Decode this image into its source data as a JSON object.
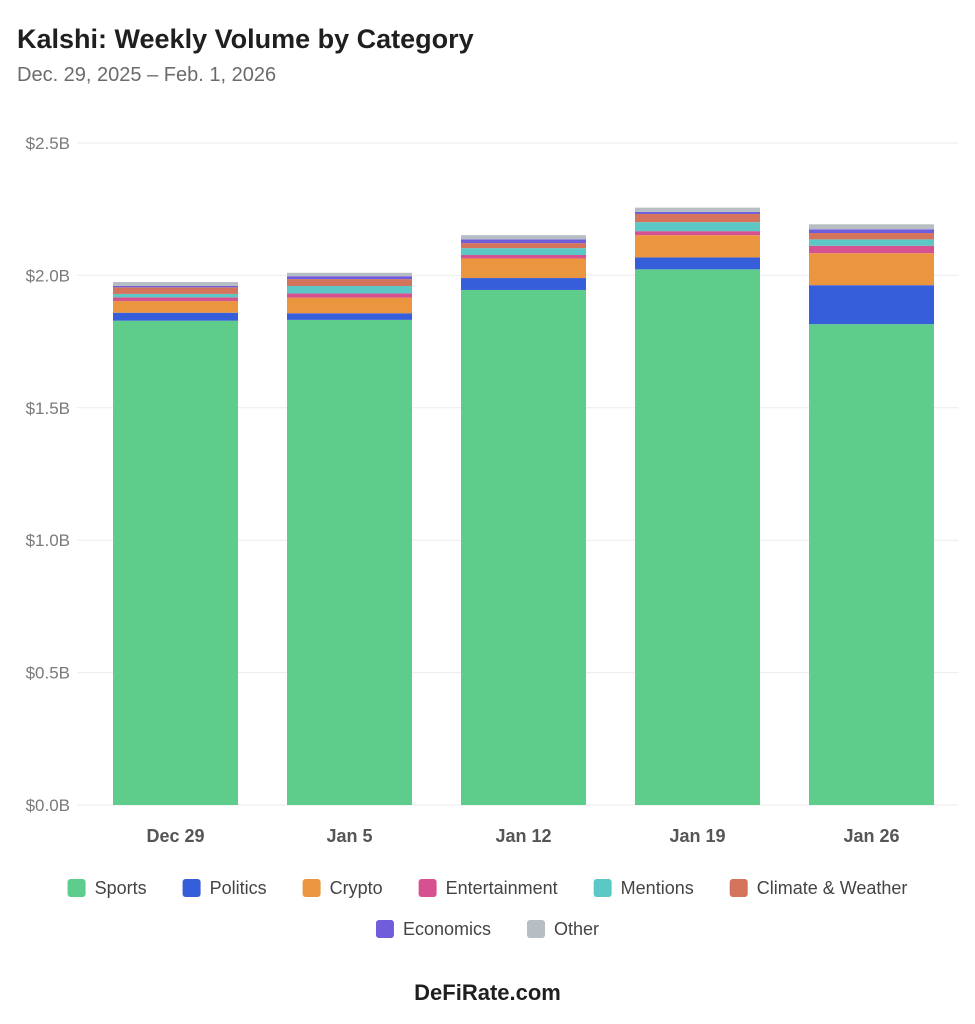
{
  "chart_data": {
    "type": "bar",
    "stacked": true,
    "title": "Kalshi: Weekly Volume by Category",
    "subtitle": "Dec. 29, 2025 – Feb. 1, 2026",
    "xlabel": "",
    "ylabel": "",
    "ylim": [
      0,
      2.5
    ],
    "yticks": [
      0,
      0.5,
      1.0,
      1.5,
      2.0,
      2.5
    ],
    "ytick_labels": [
      "$0.0B",
      "$0.5B",
      "$1.0B",
      "$1.5B",
      "$2.0B",
      "$2.5B"
    ],
    "grid": true,
    "legend_position": "bottom",
    "categories": [
      "Dec 29",
      "Jan 5",
      "Jan 12",
      "Jan 19",
      "Jan 26"
    ],
    "series": [
      {
        "name": "Sports",
        "color": "#5ecc8b",
        "values": [
          1.829,
          1.832,
          1.945,
          2.023,
          1.816
        ]
      },
      {
        "name": "Politics",
        "color": "#365edb",
        "values": [
          0.03,
          0.025,
          0.045,
          0.045,
          0.147
        ]
      },
      {
        "name": "Crypto",
        "color": "#eb963f",
        "values": [
          0.044,
          0.059,
          0.074,
          0.084,
          0.121
        ]
      },
      {
        "name": "Entertainment",
        "color": "#d6518f",
        "values": [
          0.014,
          0.016,
          0.013,
          0.015,
          0.028
        ]
      },
      {
        "name": "Mentions",
        "color": "#5bc8c6",
        "values": [
          0.013,
          0.028,
          0.026,
          0.034,
          0.024
        ]
      },
      {
        "name": "Climate & Weather",
        "color": "#d4745d",
        "values": [
          0.025,
          0.026,
          0.019,
          0.031,
          0.024
        ]
      },
      {
        "name": "Economics",
        "color": "#6f5ddc",
        "values": [
          0.005,
          0.011,
          0.014,
          0.008,
          0.014
        ]
      },
      {
        "name": "Other",
        "color": "#b6bec3",
        "values": [
          0.015,
          0.013,
          0.016,
          0.016,
          0.019
        ]
      }
    ]
  },
  "footer": "DeFiRate.com"
}
